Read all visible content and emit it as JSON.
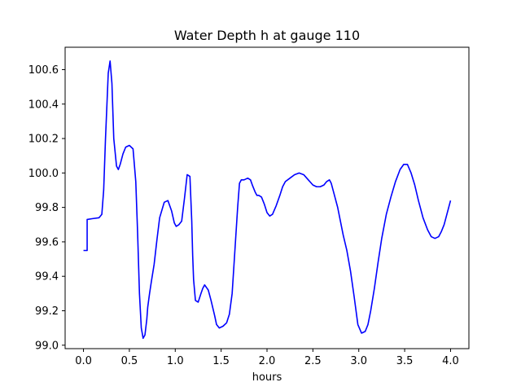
{
  "chart_data": {
    "type": "line",
    "title": "Water Depth h at gauge 110",
    "xlabel": "hours",
    "ylabel": "",
    "xlim": [
      -0.2,
      4.2
    ],
    "ylim": [
      98.98,
      100.73
    ],
    "xticks": [
      0.0,
      0.5,
      1.0,
      1.5,
      2.0,
      2.5,
      3.0,
      3.5,
      4.0
    ],
    "xtick_labels": [
      "0.0",
      "0.5",
      "1.0",
      "1.5",
      "2.0",
      "2.5",
      "3.0",
      "3.5",
      "4.0"
    ],
    "yticks": [
      99.0,
      99.2,
      99.4,
      99.6,
      99.8,
      100.0,
      100.2,
      100.4,
      100.6
    ],
    "ytick_labels": [
      "99.0",
      "99.2",
      "99.4",
      "99.6",
      "99.8",
      "100.0",
      "100.2",
      "100.4",
      "100.6"
    ],
    "grid": false,
    "series": [
      {
        "color": "#0000ff",
        "x": [
          0.0,
          0.04,
          0.04,
          0.1,
          0.17,
          0.2,
          0.22,
          0.24,
          0.27,
          0.29,
          0.31,
          0.33,
          0.36,
          0.38,
          0.4,
          0.43,
          0.46,
          0.5,
          0.54,
          0.57,
          0.59,
          0.61,
          0.63,
          0.65,
          0.67,
          0.69,
          0.7,
          0.72,
          0.74,
          0.77,
          0.8,
          0.83,
          0.88,
          0.92,
          0.96,
          0.99,
          1.01,
          1.04,
          1.07,
          1.1,
          1.13,
          1.16,
          1.18,
          1.19,
          1.2,
          1.22,
          1.25,
          1.28,
          1.3,
          1.32,
          1.36,
          1.39,
          1.43,
          1.45,
          1.48,
          1.52,
          1.56,
          1.59,
          1.62,
          1.65,
          1.68,
          1.7,
          1.72,
          1.75,
          1.79,
          1.82,
          1.84,
          1.87,
          1.89,
          1.91,
          1.94,
          1.97,
          2.0,
          2.03,
          2.06,
          2.1,
          2.14,
          2.17,
          2.2,
          2.25,
          2.3,
          2.35,
          2.4,
          2.45,
          2.5,
          2.54,
          2.58,
          2.62,
          2.65,
          2.68,
          2.7,
          2.73,
          2.77,
          2.8,
          2.83,
          2.87,
          2.91,
          2.95,
          2.99,
          3.03,
          3.07,
          3.1,
          3.13,
          3.17,
          3.21,
          3.25,
          3.3,
          3.35,
          3.4,
          3.45,
          3.49,
          3.53,
          3.57,
          3.61,
          3.65,
          3.7,
          3.75,
          3.79,
          3.83,
          3.87,
          3.9,
          3.93,
          3.96,
          4.0
        ],
        "y": [
          99.55,
          99.55,
          99.73,
          99.735,
          99.74,
          99.76,
          99.9,
          100.2,
          100.58,
          100.65,
          100.52,
          100.2,
          100.04,
          100.02,
          100.05,
          100.11,
          100.15,
          100.16,
          100.14,
          99.95,
          99.65,
          99.3,
          99.1,
          99.04,
          99.06,
          99.15,
          99.22,
          99.3,
          99.37,
          99.47,
          99.61,
          99.74,
          99.83,
          99.84,
          99.78,
          99.71,
          99.69,
          99.7,
          99.72,
          99.85,
          99.99,
          99.98,
          99.72,
          99.52,
          99.38,
          99.26,
          99.25,
          99.3,
          99.33,
          99.35,
          99.32,
          99.26,
          99.17,
          99.12,
          99.1,
          99.11,
          99.13,
          99.18,
          99.3,
          99.55,
          99.8,
          99.94,
          99.96,
          99.96,
          99.97,
          99.96,
          99.93,
          99.89,
          99.87,
          99.87,
          99.86,
          99.82,
          99.77,
          99.75,
          99.76,
          99.81,
          99.87,
          99.92,
          99.95,
          99.97,
          99.99,
          100.0,
          99.99,
          99.96,
          99.93,
          99.92,
          99.92,
          99.93,
          99.95,
          99.96,
          99.94,
          99.88,
          99.8,
          99.72,
          99.64,
          99.55,
          99.43,
          99.28,
          99.12,
          99.07,
          99.08,
          99.12,
          99.2,
          99.33,
          99.48,
          99.62,
          99.76,
          99.86,
          99.95,
          100.02,
          100.05,
          100.05,
          100.0,
          99.93,
          99.84,
          99.74,
          99.67,
          99.63,
          99.62,
          99.63,
          99.66,
          99.7,
          99.76,
          99.84
        ]
      }
    ]
  }
}
